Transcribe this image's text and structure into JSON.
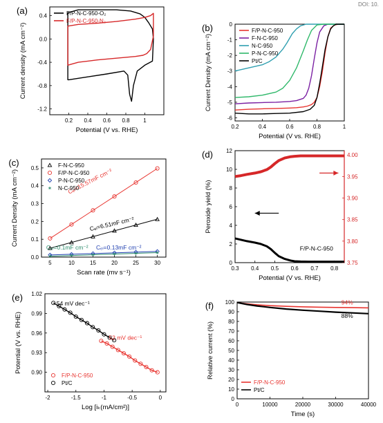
{
  "page": {
    "corner_text": "DOI: 10."
  },
  "chart_data": [
    {
      "id": "a",
      "type": "line",
      "panel_label": "(a)",
      "xlabel": "Potential (V vs. RHE)",
      "ylabel": "Current density (mA cm⁻²)",
      "xlim": [
        0.0,
        1.2
      ],
      "ylim": [
        -1.3,
        0.55
      ],
      "xticks": [
        0.2,
        0.4,
        0.6,
        0.8,
        1.0
      ],
      "yticks": [
        -1.2,
        -0.8,
        -0.4,
        0.0,
        0.4
      ],
      "ytick_labels": [
        "-1.2",
        "-0.8",
        "-0.4",
        "0.0",
        "0.4"
      ],
      "legend": {
        "placement": "top-left",
        "entries": [
          "F/P-N-C-950-O₂",
          "F/P-N-C-950-N₂"
        ]
      },
      "series": [
        {
          "name": "F/P-N-C-950-O₂",
          "color": "#000000",
          "closed": true,
          "x": [
            0.19,
            0.19,
            0.3,
            0.5,
            0.7,
            0.85,
            0.95,
            1.0,
            1.04,
            1.08,
            1.09,
            1.08,
            1.0,
            0.92,
            0.88,
            0.86,
            0.84,
            0.82,
            0.78,
            0.6,
            0.4,
            0.2
          ],
          "y": [
            -0.7,
            0.45,
            0.5,
            0.5,
            0.5,
            0.48,
            0.43,
            0.37,
            0.28,
            0.17,
            0.0,
            -0.38,
            -0.45,
            -0.55,
            -0.8,
            -1.07,
            -0.95,
            -0.62,
            -0.55,
            -0.6,
            -0.65,
            -0.7
          ]
        },
        {
          "name": "F/P-N-C-950-N₂",
          "color": "#d62728",
          "closed": true,
          "x": [
            0.19,
            0.19,
            0.3,
            0.5,
            0.7,
            0.9,
            1.0,
            1.06,
            1.09,
            1.09,
            1.06,
            1.02,
            0.98,
            0.9,
            0.7,
            0.5,
            0.3,
            0.19
          ],
          "y": [
            -0.45,
            0.22,
            0.25,
            0.27,
            0.3,
            0.34,
            0.37,
            0.4,
            0.44,
            0.05,
            -0.18,
            -0.25,
            -0.28,
            -0.3,
            -0.33,
            -0.36,
            -0.4,
            -0.45
          ]
        }
      ]
    },
    {
      "id": "b",
      "type": "line",
      "panel_label": "(b)",
      "xlabel": "Potential (V vs. RHE)",
      "ylabel": "Current Density (mA cm⁻²)",
      "xlim": [
        0.2,
        1.0
      ],
      "ylim": [
        -6.2,
        0.0
      ],
      "xticks": [
        0.2,
        0.4,
        0.6,
        0.8,
        1.0
      ],
      "yticks": [
        0,
        -1,
        -2,
        -3,
        -4,
        -5,
        -6
      ],
      "ytick_labels": [
        "0",
        "-1",
        "-2",
        "-3",
        "-4",
        "-5",
        "-6"
      ],
      "legend": {
        "placement": "top-left",
        "entries": [
          "F/P-N-C-950",
          "F-N-C-950",
          "N-C-950",
          "P-N-C-950",
          "Pt/C"
        ]
      },
      "series": [
        {
          "name": "F/P-N-C-950",
          "color": "#e8342f",
          "x": [
            0.2,
            0.3,
            0.4,
            0.5,
            0.6,
            0.65,
            0.7,
            0.73,
            0.76,
            0.78,
            0.8,
            0.82,
            0.84,
            0.86,
            0.88,
            0.9,
            0.93,
            0.96,
            1.0
          ],
          "y": [
            -5.5,
            -5.45,
            -5.42,
            -5.4,
            -5.37,
            -5.35,
            -5.3,
            -5.25,
            -5.15,
            -5.0,
            -4.7,
            -4.0,
            -3.0,
            -1.8,
            -0.8,
            -0.25,
            -0.05,
            0.0,
            0.0
          ]
        },
        {
          "name": "F-N-C-950",
          "color": "#7a1fa2",
          "x": [
            0.2,
            0.3,
            0.4,
            0.5,
            0.6,
            0.65,
            0.7,
            0.72,
            0.74,
            0.76,
            0.78,
            0.8,
            0.82,
            0.85,
            0.88,
            0.92,
            1.0
          ],
          "y": [
            -5.1,
            -5.05,
            -5.02,
            -5.0,
            -4.95,
            -4.9,
            -4.75,
            -4.55,
            -4.1,
            -3.3,
            -2.2,
            -1.2,
            -0.5,
            -0.1,
            0.0,
            0.0,
            0.0
          ]
        },
        {
          "name": "N-C-950",
          "color": "#2f9fb0",
          "x": [
            0.2,
            0.3,
            0.4,
            0.45,
            0.5,
            0.55,
            0.58,
            0.62,
            0.65,
            0.68,
            0.72,
            0.76,
            0.8,
            1.0
          ],
          "y": [
            -3.0,
            -2.8,
            -2.6,
            -2.4,
            -2.1,
            -1.6,
            -1.2,
            -0.6,
            -0.3,
            -0.1,
            0.0,
            0.0,
            0.0,
            0.0
          ]
        },
        {
          "name": "P-N-C-950",
          "color": "#2fb86a",
          "x": [
            0.2,
            0.3,
            0.4,
            0.5,
            0.55,
            0.6,
            0.65,
            0.7,
            0.73,
            0.76,
            0.8,
            0.85,
            1.0
          ],
          "y": [
            -4.7,
            -4.65,
            -4.55,
            -4.35,
            -4.1,
            -3.6,
            -2.8,
            -1.7,
            -1.0,
            -0.4,
            -0.05,
            0.0,
            0.0
          ]
        },
        {
          "name": "Pt/C",
          "color": "#000000",
          "x": [
            0.2,
            0.3,
            0.4,
            0.5,
            0.6,
            0.7,
            0.75,
            0.78,
            0.8,
            0.82,
            0.84,
            0.86,
            0.88,
            0.9,
            0.92,
            0.94,
            1.0
          ],
          "y": [
            -5.7,
            -5.75,
            -5.75,
            -5.72,
            -5.7,
            -5.6,
            -5.45,
            -5.2,
            -4.7,
            -3.8,
            -2.7,
            -1.6,
            -0.8,
            -0.3,
            -0.1,
            0.0,
            0.0
          ]
        }
      ]
    },
    {
      "id": "c",
      "type": "scatter",
      "panel_label": "(c)",
      "xlabel": "Scan rate (mv s⁻¹)",
      "ylabel": "Current Density (mA cm⁻²)",
      "xlim": [
        3,
        32
      ],
      "ylim": [
        0.0,
        0.55
      ],
      "xticks": [
        5,
        10,
        15,
        20,
        25,
        30
      ],
      "yticks": [
        0.0,
        0.1,
        0.2,
        0.3,
        0.4,
        0.5
      ],
      "ytick_labels": [
        "0.0",
        "0.1",
        "0.2",
        "0.3",
        "0.4",
        "0.5"
      ],
      "legend": {
        "placement": "top-left",
        "entries": [
          "F-N-C-950",
          "F/P-N-C-950",
          "P-N-C-950",
          "N-C-950"
        ]
      },
      "series": [
        {
          "name": "F-N-C-950",
          "marker": "triangle",
          "color": "#000000",
          "fit_color": "#000000",
          "x": [
            5,
            10,
            15,
            20,
            25,
            30
          ],
          "y": [
            0.05,
            0.082,
            0.115,
            0.148,
            0.18,
            0.212
          ]
        },
        {
          "name": "F/P-N-C-950",
          "marker": "circle",
          "color": "#e8342f",
          "fit_color": "#e8342f",
          "x": [
            5,
            10,
            15,
            20,
            25,
            30
          ],
          "y": [
            0.105,
            0.183,
            0.262,
            0.34,
            0.418,
            0.497
          ]
        },
        {
          "name": "P-N-C-950",
          "marker": "diamond",
          "color": "#1f3fb0",
          "fit_color": "#1f3fb0",
          "x": [
            5,
            10,
            15,
            20,
            25,
            30
          ],
          "y": [
            0.012,
            0.016,
            0.02,
            0.024,
            0.028,
            0.032
          ]
        },
        {
          "name": "N-C-950",
          "marker": "star",
          "color": "#2a8a6a",
          "fit_color": "#2a8a6a",
          "x": [
            5,
            10,
            15,
            20,
            25,
            30
          ],
          "y": [
            0.005,
            0.009,
            0.013,
            0.017,
            0.021,
            0.025
          ]
        }
      ],
      "annotations": [
        {
          "text": "Cₑₗ=15.57mF cm⁻²",
          "x": 14.5,
          "y": 0.415,
          "color": "#e8342f",
          "rotate": -27
        },
        {
          "text": "Cₑₗ=6.51mF cm⁻²",
          "x": 19.5,
          "y": 0.175,
          "color": "#000000",
          "rotate": -13
        },
        {
          "text": "Cₑₗ=0.1mF cm⁻²",
          "x": 9.0,
          "y": 0.042,
          "color": "#2a8a6a",
          "rotate": 0
        },
        {
          "text": "Cₑₗ=0.13mF cm⁻²",
          "x": 21.0,
          "y": 0.042,
          "color": "#1f3fb0",
          "rotate": 0
        }
      ]
    },
    {
      "id": "d",
      "type": "line",
      "panel_label": "(d)",
      "xlabel": "Potential (V vs. RHE)",
      "ylabel": "Peroxide yield (%)",
      "y2label": "n",
      "xlim": [
        0.3,
        0.85
      ],
      "ylim": [
        0,
        12
      ],
      "y2lim": [
        3.75,
        4.01
      ],
      "xticks": [
        0.3,
        0.4,
        0.5,
        0.6,
        0.7,
        0.8
      ],
      "yticks": [
        0,
        2,
        4,
        6,
        8,
        10,
        12
      ],
      "ytick_labels": [
        "0",
        "2",
        "4",
        "6",
        "8",
        "10",
        "12"
      ],
      "y2ticks": [
        3.75,
        3.8,
        3.85,
        3.9,
        3.95,
        4.0
      ],
      "y2tick_labels": [
        "3.75",
        "3.80",
        "3.85",
        "3.90",
        "3.95",
        "4.00"
      ],
      "annotations": [
        {
          "text": "F/P-N-C-950",
          "x": 0.71,
          "y": 1.3,
          "color": "#000000",
          "rotate": 0
        }
      ],
      "series": [
        {
          "name": "Peroxide yield",
          "axis": "left",
          "color": "#000000",
          "width": 3,
          "x": [
            0.3,
            0.33,
            0.36,
            0.4,
            0.43,
            0.46,
            0.48,
            0.5,
            0.52,
            0.55,
            0.58,
            0.6,
            0.63,
            0.67,
            0.7,
            0.75,
            0.8,
            0.85
          ],
          "y": [
            2.6,
            2.45,
            2.3,
            2.15,
            2.0,
            1.75,
            1.45,
            1.05,
            0.7,
            0.4,
            0.22,
            0.15,
            0.12,
            0.1,
            0.1,
            0.1,
            0.1,
            0.1
          ]
        },
        {
          "name": "n",
          "axis": "right",
          "color": "#d62728",
          "width": 4,
          "x": [
            0.3,
            0.33,
            0.36,
            0.4,
            0.43,
            0.46,
            0.48,
            0.5,
            0.52,
            0.55,
            0.58,
            0.6,
            0.63,
            0.67,
            0.7,
            0.75,
            0.8,
            0.85
          ],
          "y": [
            3.95,
            3.952,
            3.955,
            3.958,
            3.961,
            3.966,
            3.972,
            3.98,
            3.987,
            3.993,
            3.996,
            3.997,
            3.998,
            3.998,
            3.998,
            3.998,
            3.998,
            3.998
          ]
        }
      ],
      "arrows": [
        {
          "from": [
            0.52,
            5.3
          ],
          "to": [
            0.4,
            5.3
          ],
          "color": "#000000"
        },
        {
          "from": [
            0.725,
            9.6
          ],
          "to": [
            0.82,
            9.6
          ],
          "color": "#d62728"
        }
      ]
    },
    {
      "id": "e",
      "type": "line",
      "panel_label": "(e)",
      "xlabel": "Log [iₖ(mA/cm²)]",
      "ylabel": "Potential (V vs. RHE)",
      "xlim": [
        -2.05,
        0.1
      ],
      "ylim": [
        0.87,
        1.02
      ],
      "xticks": [
        -2.0,
        -1.5,
        -1.0,
        -0.5,
        0.0
      ],
      "yticks": [
        0.9,
        0.93,
        0.96,
        0.99,
        1.02
      ],
      "ytick_labels": [
        "0.90",
        "0.93",
        "0.96",
        "0.99",
        "1.02"
      ],
      "legend": {
        "placement": "bottom-left",
        "entries": [
          "F/P-N-C-950",
          "Pt/C"
        ]
      },
      "annotations": [
        {
          "text": "54 mV dec⁻¹",
          "x": -1.55,
          "y": 1.002,
          "color": "#000000",
          "rotate": 0
        },
        {
          "text": "52 mV dec⁻¹",
          "x": -0.62,
          "y": 0.95,
          "color": "#e8342f",
          "rotate": 0
        }
      ],
      "series": [
        {
          "name": "F/P-N-C-950",
          "color": "#e8342f",
          "marker": "circle",
          "x": [
            -1.05,
            -0.95,
            -0.85,
            -0.75,
            -0.65,
            -0.55,
            -0.45,
            -0.35,
            -0.25,
            -0.15,
            -0.05
          ],
          "y": [
            0.948,
            0.944,
            0.939,
            0.934,
            0.929,
            0.924,
            0.918,
            0.913,
            0.908,
            0.903,
            0.9
          ]
        },
        {
          "name": "Pt/C",
          "color": "#000000",
          "marker": "circle",
          "x": [
            -1.9,
            -1.8,
            -1.7,
            -1.6,
            -1.5,
            -1.4,
            -1.3,
            -1.2,
            -1.1,
            -1.0,
            -0.9,
            -0.82
          ],
          "y": [
            1.006,
            1.001,
            0.996,
            0.991,
            0.985,
            0.98,
            0.975,
            0.969,
            0.964,
            0.958,
            0.953,
            0.949
          ]
        }
      ]
    },
    {
      "id": "f",
      "type": "line",
      "panel_label": "(f)",
      "xlabel": "Time (s)",
      "ylabel": "Relative current (%)",
      "xlim": [
        0,
        40000
      ],
      "ylim": [
        0,
        100
      ],
      "xticks": [
        0,
        10000,
        20000,
        30000,
        40000
      ],
      "yticks": [
        0,
        10,
        20,
        30,
        40,
        50,
        60,
        70,
        80,
        90,
        100
      ],
      "ytick_labels": [
        "0",
        "10",
        "20",
        "30",
        "40",
        "50",
        "60",
        "70",
        "80",
        "90",
        "100"
      ],
      "legend": {
        "placement": "bottom-left",
        "entries": [
          "F/P-N-C-950",
          "Pt/C"
        ]
      },
      "annotations": [
        {
          "text": "94%",
          "x": 33500,
          "y": 97.5,
          "color": "#e8342f",
          "rotate": 0
        },
        {
          "text": "88%",
          "x": 33500,
          "y": 83.5,
          "color": "#000000",
          "rotate": 0
        }
      ],
      "series": [
        {
          "name": "F/P-N-C-950",
          "color": "#e8342f",
          "width": 1.6,
          "x": [
            0,
            1000,
            3000,
            6000,
            10000,
            15000,
            20000,
            25000,
            30000,
            35000,
            40000
          ],
          "y": [
            99.5,
            99,
            98.2,
            97.2,
            96.3,
            95.6,
            95.1,
            94.7,
            94.4,
            94.2,
            94.0
          ]
        },
        {
          "name": "Pt/C",
          "color": "#000000",
          "width": 2.2,
          "x": [
            0,
            1000,
            3000,
            6000,
            10000,
            15000,
            20000,
            25000,
            30000,
            35000,
            40000
          ],
          "y": [
            99.5,
            98.8,
            97.5,
            96.0,
            94.4,
            92.8,
            91.6,
            90.6,
            89.6,
            88.8,
            88.0
          ]
        }
      ]
    }
  ]
}
